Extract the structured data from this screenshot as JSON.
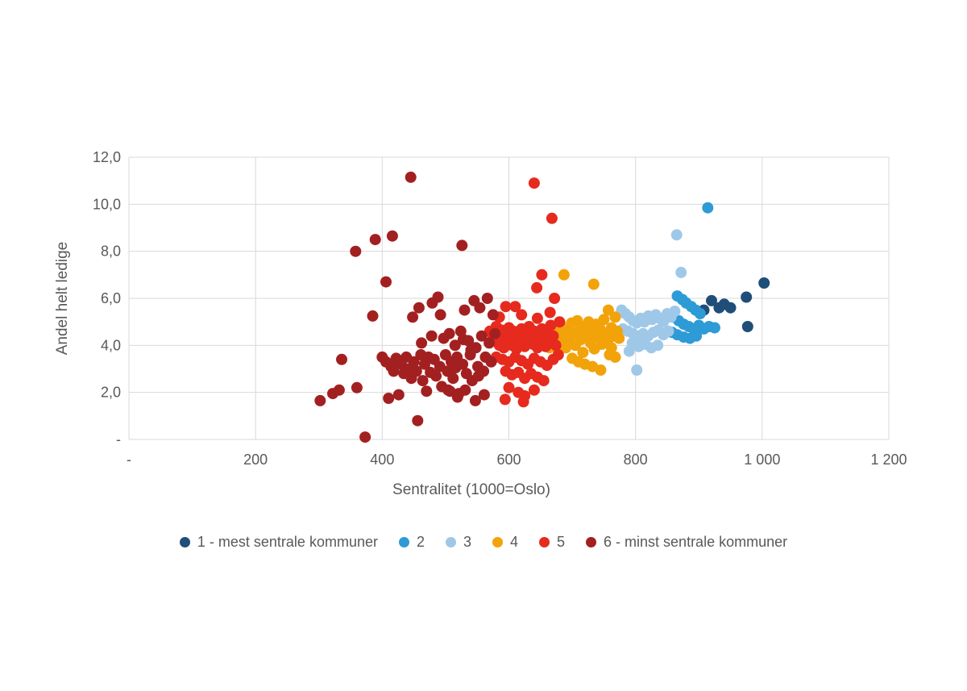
{
  "page": {
    "background": "#ffffff"
  },
  "chart_data": {
    "type": "scatter",
    "title": "",
    "xlabel": "Sentralitet (1000=Oslo)",
    "ylabel": "Andel helt ledige",
    "xlim": [
      0,
      1200
    ],
    "ylim": [
      0,
      12
    ],
    "grid": true,
    "grid_color": "#d9d9d9",
    "axis_text_color": "#595959",
    "legend_position": "bottom",
    "x_tick_values": [
      0,
      200,
      400,
      600,
      800,
      1000,
      1200
    ],
    "x_tick_labels": [
      "-",
      "200",
      "400",
      "600",
      "800",
      "1 000",
      "1 200"
    ],
    "y_tick_values": [
      0,
      2,
      4,
      6,
      8,
      10,
      12
    ],
    "y_tick_labels": [
      "-",
      "2,0",
      "4,0",
      "6,0",
      "8,0",
      "10,0",
      "12,0"
    ],
    "series": [
      {
        "name": "1 - mest sentrale kommuner",
        "color": "#1f4e79",
        "points": [
          [
            1003,
            6.65
          ],
          [
            975,
            6.05
          ],
          [
            977,
            4.8
          ],
          [
            940,
            5.75
          ],
          [
            932,
            5.6
          ],
          [
            920,
            5.9
          ],
          [
            908,
            5.5
          ],
          [
            950,
            5.6
          ]
        ]
      },
      {
        "name": "2",
        "color": "#2d9bd5",
        "points": [
          [
            914,
            9.85
          ],
          [
            866,
            6.1
          ],
          [
            874,
            5.95
          ],
          [
            880,
            5.8
          ],
          [
            888,
            5.65
          ],
          [
            895,
            5.5
          ],
          [
            902,
            5.35
          ],
          [
            860,
            5.2
          ],
          [
            868,
            5.05
          ],
          [
            876,
            4.9
          ],
          [
            884,
            4.8
          ],
          [
            892,
            4.7
          ],
          [
            900,
            4.85
          ],
          [
            908,
            4.7
          ],
          [
            916,
            4.8
          ],
          [
            925,
            4.75
          ],
          [
            858,
            4.55
          ],
          [
            866,
            4.45
          ],
          [
            876,
            4.35
          ],
          [
            886,
            4.3
          ],
          [
            896,
            4.4
          ]
        ]
      },
      {
        "name": "3",
        "color": "#9fc8e8",
        "points": [
          [
            865,
            8.7
          ],
          [
            872,
            7.1
          ],
          [
            802,
            2.95
          ],
          [
            778,
            5.5
          ],
          [
            784,
            5.35
          ],
          [
            790,
            5.2
          ],
          [
            796,
            5.05
          ],
          [
            802,
            4.95
          ],
          [
            808,
            5.15
          ],
          [
            814,
            5.0
          ],
          [
            820,
            5.25
          ],
          [
            826,
            5.1
          ],
          [
            832,
            5.3
          ],
          [
            838,
            5.15
          ],
          [
            844,
            5.0
          ],
          [
            850,
            5.35
          ],
          [
            856,
            5.2
          ],
          [
            862,
            5.45
          ],
          [
            780,
            4.7
          ],
          [
            788,
            4.6
          ],
          [
            796,
            4.5
          ],
          [
            804,
            4.4
          ],
          [
            812,
            4.5
          ],
          [
            820,
            4.4
          ],
          [
            828,
            4.55
          ],
          [
            836,
            4.65
          ],
          [
            844,
            4.45
          ],
          [
            852,
            4.6
          ],
          [
            795,
            4.1
          ],
          [
            805,
            3.95
          ],
          [
            815,
            4.05
          ],
          [
            825,
            3.9
          ],
          [
            835,
            4.0
          ],
          [
            790,
            3.75
          ]
        ]
      },
      {
        "name": "4",
        "color": "#f2a30a",
        "points": [
          [
            687,
            7.0
          ],
          [
            734,
            6.6
          ],
          [
            757,
            5.5
          ],
          [
            655,
            4.0
          ],
          [
            660,
            4.3
          ],
          [
            664,
            3.9
          ],
          [
            668,
            4.5
          ],
          [
            672,
            4.1
          ],
          [
            675,
            4.6
          ],
          [
            678,
            3.8
          ],
          [
            681,
            4.9
          ],
          [
            684,
            4.3
          ],
          [
            687,
            4.45
          ],
          [
            690,
            3.9
          ],
          [
            693,
            4.7
          ],
          [
            696,
            4.2
          ],
          [
            699,
            4.95
          ],
          [
            702,
            4.5
          ],
          [
            705,
            4.0
          ],
          [
            708,
            5.05
          ],
          [
            711,
            4.6
          ],
          [
            714,
            4.25
          ],
          [
            717,
            3.7
          ],
          [
            720,
            4.8
          ],
          [
            723,
            4.4
          ],
          [
            726,
            5.0
          ],
          [
            729,
            4.1
          ],
          [
            732,
            4.55
          ],
          [
            735,
            3.85
          ],
          [
            738,
            4.9
          ],
          [
            741,
            4.35
          ],
          [
            744,
            4.7
          ],
          [
            747,
            4.05
          ],
          [
            750,
            5.1
          ],
          [
            753,
            4.5
          ],
          [
            756,
            4.2
          ],
          [
            759,
            3.6
          ],
          [
            762,
            4.75
          ],
          [
            765,
            4.4
          ],
          [
            768,
            5.2
          ],
          [
            771,
            4.6
          ],
          [
            774,
            4.3
          ],
          [
            700,
            3.45
          ],
          [
            710,
            3.3
          ],
          [
            720,
            3.2
          ],
          [
            732,
            3.1
          ],
          [
            745,
            2.95
          ],
          [
            762,
            3.9
          ],
          [
            768,
            3.5
          ]
        ]
      },
      {
        "name": "5",
        "color": "#e62a1e",
        "points": [
          [
            640,
            10.9
          ],
          [
            668,
            9.4
          ],
          [
            652,
            7.0
          ],
          [
            644,
            6.45
          ],
          [
            610,
            5.65
          ],
          [
            595,
            5.65
          ],
          [
            570,
            4.6
          ],
          [
            575,
            4.4
          ],
          [
            578,
            4.2
          ],
          [
            580,
            4.8
          ],
          [
            582,
            4.5
          ],
          [
            585,
            4.0
          ],
          [
            588,
            4.65
          ],
          [
            590,
            4.3
          ],
          [
            592,
            3.9
          ],
          [
            595,
            4.55
          ],
          [
            598,
            4.15
          ],
          [
            600,
            4.75
          ],
          [
            602,
            4.4
          ],
          [
            605,
            4.0
          ],
          [
            607,
            4.6
          ],
          [
            610,
            4.2
          ],
          [
            612,
            3.85
          ],
          [
            615,
            4.5
          ],
          [
            617,
            4.1
          ],
          [
            620,
            4.7
          ],
          [
            622,
            4.35
          ],
          [
            625,
            3.95
          ],
          [
            628,
            4.55
          ],
          [
            630,
            4.15
          ],
          [
            632,
            4.8
          ],
          [
            635,
            4.45
          ],
          [
            638,
            4.05
          ],
          [
            640,
            4.6
          ],
          [
            642,
            4.25
          ],
          [
            645,
            3.9
          ],
          [
            648,
            4.5
          ],
          [
            650,
            4.1
          ],
          [
            652,
            4.7
          ],
          [
            655,
            4.35
          ],
          [
            658,
            3.95
          ],
          [
            660,
            4.55
          ],
          [
            663,
            4.2
          ],
          [
            666,
            4.85
          ],
          [
            670,
            4.4
          ],
          [
            674,
            4.0
          ],
          [
            678,
            3.6
          ],
          [
            580,
            3.5
          ],
          [
            590,
            3.4
          ],
          [
            600,
            3.3
          ],
          [
            610,
            3.5
          ],
          [
            620,
            3.35
          ],
          [
            630,
            3.2
          ],
          [
            640,
            3.45
          ],
          [
            650,
            3.3
          ],
          [
            660,
            3.15
          ],
          [
            670,
            3.4
          ],
          [
            595,
            2.9
          ],
          [
            605,
            2.75
          ],
          [
            615,
            2.85
          ],
          [
            625,
            2.6
          ],
          [
            635,
            2.8
          ],
          [
            645,
            2.65
          ],
          [
            655,
            2.5
          ],
          [
            600,
            2.2
          ],
          [
            615,
            2.0
          ],
          [
            625,
            1.85
          ],
          [
            640,
            2.1
          ],
          [
            594,
            1.7
          ],
          [
            623,
            1.6
          ],
          [
            585,
            5.2
          ],
          [
            620,
            5.3
          ],
          [
            645,
            5.15
          ],
          [
            665,
            5.4
          ],
          [
            672,
            6.0
          ],
          [
            680,
            5.0
          ]
        ]
      },
      {
        "name": "6 - minst sentrale kommuner",
        "color": "#a32021",
        "points": [
          [
            445,
            11.15
          ],
          [
            358,
            8.0
          ],
          [
            389,
            8.5
          ],
          [
            416,
            8.65
          ],
          [
            526,
            8.25
          ],
          [
            406,
            6.7
          ],
          [
            373,
            0.1
          ],
          [
            456,
            0.8
          ],
          [
            302,
            1.65
          ],
          [
            322,
            1.95
          ],
          [
            332,
            2.1
          ],
          [
            336,
            3.4
          ],
          [
            360,
            2.2
          ],
          [
            385,
            5.25
          ],
          [
            400,
            3.5
          ],
          [
            406,
            3.3
          ],
          [
            410,
            1.75
          ],
          [
            414,
            3.1
          ],
          [
            418,
            2.9
          ],
          [
            422,
            3.45
          ],
          [
            426,
            1.9
          ],
          [
            430,
            3.2
          ],
          [
            434,
            2.8
          ],
          [
            438,
            3.5
          ],
          [
            442,
            3.0
          ],
          [
            446,
            2.6
          ],
          [
            450,
            3.3
          ],
          [
            454,
            2.9
          ],
          [
            458,
            5.6
          ],
          [
            461,
            3.6
          ],
          [
            464,
            2.5
          ],
          [
            467,
            3.2
          ],
          [
            470,
            2.05
          ],
          [
            473,
            3.5
          ],
          [
            476,
            2.85
          ],
          [
            479,
            5.8
          ],
          [
            482,
            3.4
          ],
          [
            485,
            2.7
          ],
          [
            488,
            6.05
          ],
          [
            491,
            3.1
          ],
          [
            494,
            2.25
          ],
          [
            497,
            4.3
          ],
          [
            500,
            3.6
          ],
          [
            503,
            2.9
          ],
          [
            506,
            4.5
          ],
          [
            509,
            3.3
          ],
          [
            512,
            2.6
          ],
          [
            515,
            4.0
          ],
          [
            518,
            3.5
          ],
          [
            521,
            1.95
          ],
          [
            524,
            4.6
          ],
          [
            527,
            3.2
          ],
          [
            530,
            5.5
          ],
          [
            533,
            2.8
          ],
          [
            536,
            4.2
          ],
          [
            539,
            3.6
          ],
          [
            542,
            2.5
          ],
          [
            545,
            5.9
          ],
          [
            548,
            3.9
          ],
          [
            551,
            3.1
          ],
          [
            554,
            5.6
          ],
          [
            557,
            4.4
          ],
          [
            560,
            2.9
          ],
          [
            563,
            3.5
          ],
          [
            566,
            6.0
          ],
          [
            569,
            4.1
          ],
          [
            572,
            3.3
          ],
          [
            575,
            5.3
          ],
          [
            578,
            4.5
          ],
          [
            552,
            2.7
          ],
          [
            540,
            3.8
          ],
          [
            528,
            4.25
          ],
          [
            516,
            3.05
          ],
          [
            504,
            2.1
          ],
          [
            492,
            5.3
          ],
          [
            478,
            4.4
          ],
          [
            462,
            4.1
          ],
          [
            448,
            5.2
          ],
          [
            507,
            2.05
          ],
          [
            519,
            1.8
          ],
          [
            531,
            2.1
          ],
          [
            547,
            1.65
          ],
          [
            561,
            1.9
          ]
        ]
      }
    ]
  }
}
